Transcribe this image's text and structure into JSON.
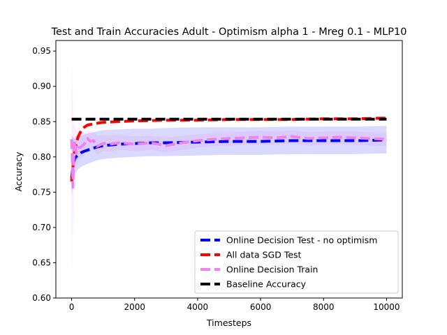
{
  "chart_data": {
    "type": "line",
    "title": "Test and Train Accuracies Adult - Optimism alpha 1 - Mreg 0.1 - MLP10",
    "xlabel": "Timesteps",
    "ylabel": "Accuracy",
    "xlim": [
      -500,
      10500
    ],
    "ylim": [
      0.6,
      0.965
    ],
    "xticks": [
      0,
      2000,
      4000,
      6000,
      8000,
      10000
    ],
    "xtick_labels": [
      "0",
      "2000",
      "4000",
      "6000",
      "8000",
      "10000"
    ],
    "yticks": [
      0.6,
      0.65,
      0.7,
      0.75,
      0.8,
      0.85,
      0.9,
      0.95
    ],
    "ytick_labels": [
      "0.60",
      "0.65",
      "0.70",
      "0.75",
      "0.80",
      "0.85",
      "0.90",
      "0.95"
    ],
    "grid": false,
    "legend_position": "lower-right",
    "series": [
      {
        "name": "Online Decision Test - no optimism",
        "color": "#0000ff",
        "x": [
          0,
          50,
          100,
          200,
          300,
          400,
          600,
          800,
          1000,
          1500,
          2000,
          2500,
          3000,
          4000,
          5000,
          6000,
          7000,
          8000,
          9000,
          10000
        ],
        "y": [
          0.77,
          0.79,
          0.798,
          0.803,
          0.806,
          0.808,
          0.811,
          0.814,
          0.816,
          0.818,
          0.819,
          0.82,
          0.82,
          0.821,
          0.822,
          0.822,
          0.823,
          0.823,
          0.823,
          0.824
        ],
        "band_upper": [
          0.83,
          0.828,
          0.826,
          0.828,
          0.83,
          0.832,
          0.834,
          0.836,
          0.838,
          0.839,
          0.84,
          0.84,
          0.841,
          0.842,
          0.842,
          0.842,
          0.843,
          0.843,
          0.843,
          0.844
        ],
        "band_lower": [
          0.745,
          0.76,
          0.775,
          0.782,
          0.786,
          0.788,
          0.792,
          0.795,
          0.797,
          0.799,
          0.8,
          0.801,
          0.801,
          0.802,
          0.803,
          0.803,
          0.804,
          0.804,
          0.804,
          0.805
        ]
      },
      {
        "name": "All data SGD Test",
        "color": "#ff0000",
        "x": [
          0,
          50,
          100,
          200,
          300,
          400,
          500,
          700,
          1000,
          1500,
          2000,
          3000,
          4000,
          5000,
          6000,
          7000,
          8000,
          9000,
          10000
        ],
        "y": [
          0.765,
          0.79,
          0.81,
          0.828,
          0.837,
          0.842,
          0.845,
          0.847,
          0.849,
          0.85,
          0.851,
          0.852,
          0.852,
          0.853,
          0.853,
          0.853,
          0.854,
          0.854,
          0.855
        ]
      },
      {
        "name": "Online Decision Train",
        "color": "#ee82ee",
        "x": [
          0,
          20,
          40,
          60,
          80,
          100,
          150,
          200,
          300,
          400,
          500,
          600,
          700,
          800,
          1000,
          1200,
          1500,
          2000,
          2500,
          3000,
          3500,
          4000,
          4500,
          5000,
          5500,
          6000,
          6500,
          7000,
          7500,
          8000,
          8500,
          9000,
          9500,
          10000
        ],
        "y": [
          0.825,
          0.8,
          0.757,
          0.79,
          0.81,
          0.822,
          0.805,
          0.813,
          0.814,
          0.818,
          0.826,
          0.822,
          0.823,
          0.815,
          0.819,
          0.818,
          0.82,
          0.818,
          0.82,
          0.816,
          0.82,
          0.823,
          0.825,
          0.826,
          0.827,
          0.828,
          0.827,
          0.829,
          0.826,
          0.827,
          0.828,
          0.827,
          0.826,
          0.825
        ],
        "band_upper": [
          0.945,
          0.9,
          0.86,
          0.85,
          0.846,
          0.844,
          0.838,
          0.838,
          0.836,
          0.836,
          0.838,
          0.836,
          0.836,
          0.83,
          0.831,
          0.83,
          0.831,
          0.829,
          0.83,
          0.827,
          0.83,
          0.832,
          0.834,
          0.835,
          0.836,
          0.837,
          0.836,
          0.838,
          0.835,
          0.836,
          0.837,
          0.836,
          0.835,
          0.834
        ],
        "band_lower": [
          0.615,
          0.69,
          0.7,
          0.735,
          0.765,
          0.785,
          0.785,
          0.795,
          0.798,
          0.802,
          0.812,
          0.81,
          0.811,
          0.803,
          0.808,
          0.807,
          0.81,
          0.808,
          0.81,
          0.806,
          0.81,
          0.813,
          0.815,
          0.816,
          0.817,
          0.818,
          0.817,
          0.819,
          0.816,
          0.817,
          0.818,
          0.817,
          0.816,
          0.815
        ]
      },
      {
        "name": "Baseline Accuracy",
        "color": "#000000",
        "x": [
          0,
          10000
        ],
        "y": [
          0.8535,
          0.8535
        ]
      }
    ]
  }
}
